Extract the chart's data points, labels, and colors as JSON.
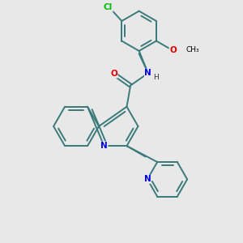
{
  "bg_color": "#e8e8e8",
  "bond_color": "#3a7a7a",
  "bond_lw": 1.4,
  "atom_colors": {
    "N": "#0000ee",
    "O": "#dd0000",
    "Cl": "#00bb00",
    "C": "#000000",
    "H": "#333333"
  },
  "font_size": 7.5,
  "small_font_size": 6.5
}
